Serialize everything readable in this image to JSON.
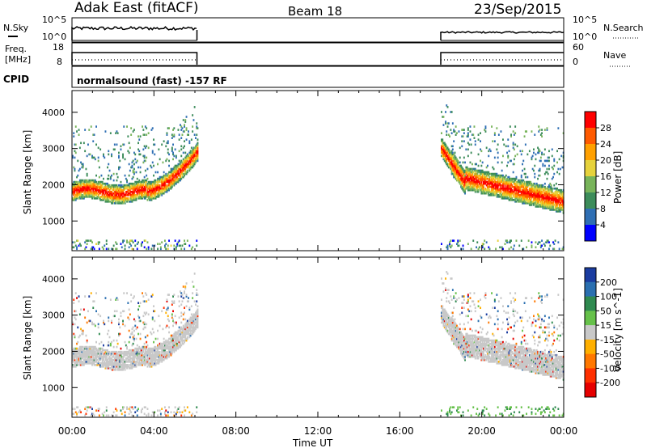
{
  "header": {
    "station": "Adak East (fitACF)",
    "beam": "Beam 18",
    "date": "23/Sep/2015"
  },
  "panels": {
    "nsky": {
      "left_label": "N.Sky",
      "right_label": "N.Search",
      "left_ticks": [
        "10^5",
        "10^0"
      ],
      "right_ticks": [
        "10^5",
        "10^0"
      ]
    },
    "freq": {
      "left_label_1": "Freq.",
      "left_label_2": "[MHz]",
      "right_label": "Nave",
      "left_ticks": [
        "18",
        "8"
      ],
      "right_ticks": [
        "60",
        "0"
      ]
    },
    "cpid": {
      "left_label": "CPID",
      "text": "normalsound (fast) -157 RF"
    }
  },
  "chart_data": [
    {
      "type": "heatmap",
      "name": "power",
      "ylabel": "Slant Range [km]",
      "xlabel": "",
      "xlim": [
        0,
        24
      ],
      "ylim": [
        180,
        4600
      ],
      "x_tick_labels": [
        "00:00",
        "04:00",
        "08:00",
        "12:00",
        "16:00",
        "20:00",
        "00:00"
      ],
      "y_tick_labels": [
        "1000",
        "2000",
        "3000",
        "4000"
      ],
      "y_ticks": [
        1000,
        2000,
        3000,
        4000
      ],
      "colorbar": {
        "label": "Power [dB]",
        "ticks": [
          "4",
          "8",
          "12",
          "16",
          "20",
          "24",
          "28"
        ],
        "range": [
          0,
          30
        ],
        "colors": [
          "#0000ff",
          "#2f6fb4",
          "#3c8c5a",
          "#78b45a",
          "#e6d23c",
          "#ffa000",
          "#ff5a00",
          "#ff0000"
        ]
      },
      "data_blocks": [
        {
          "time": [
            0.0,
            6.1
          ],
          "feature": "band near 1800 km rising to 3000 km at 06:00",
          "peak_db": 30
        },
        {
          "time": [
            18.0,
            24.0
          ],
          "feature": "band descending from 3000 km to 1400 km",
          "peak_db": 30
        }
      ]
    },
    {
      "type": "heatmap",
      "name": "velocity",
      "ylabel": "Slant Range [km]",
      "xlabel": "Time UT",
      "xlim": [
        0,
        24
      ],
      "ylim": [
        180,
        4600
      ],
      "x_tick_labels": [
        "00:00",
        "04:00",
        "08:00",
        "12:00",
        "16:00",
        "20:00",
        "00:00"
      ],
      "y_tick_labels": [
        "1000",
        "2000",
        "3000",
        "4000"
      ],
      "y_ticks": [
        1000,
        2000,
        3000,
        4000
      ],
      "colorbar": {
        "label": "Velocity [m s^-1]",
        "ticks": [
          "200",
          "100",
          "50",
          "15",
          "-15",
          "-50",
          "-100",
          "-200"
        ],
        "colors": [
          "#1a3ca0",
          "#2a6fb0",
          "#2f8a50",
          "#66c14a",
          "#c8c8c8",
          "#ffb000",
          "#ff7800",
          "#ff3000",
          "#e60000"
        ]
      }
    }
  ],
  "colors": {
    "ground_scatter": "#c8c8c8",
    "line": "#000000"
  }
}
